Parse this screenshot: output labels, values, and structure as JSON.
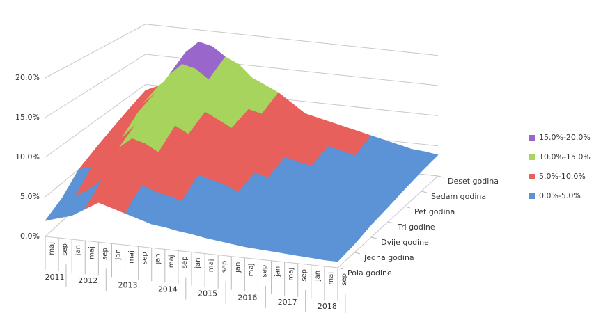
{
  "chart_data": {
    "type": "surface3d",
    "categories": [
      "maj",
      "sep",
      "jan",
      "maj",
      "sep",
      "jan",
      "maj",
      "sep",
      "jan",
      "maj",
      "sep",
      "jan",
      "maj",
      "sep",
      "jan",
      "maj",
      "sep",
      "jan",
      "maj",
      "sep",
      "jan",
      "maj",
      "sep"
    ],
    "category_years": [
      "2011",
      "2011",
      "2012",
      "2012",
      "2012",
      "2013",
      "2013",
      "2013",
      "2014",
      "2014",
      "2014",
      "2015",
      "2015",
      "2015",
      "2016",
      "2016",
      "2016",
      "2017",
      "2017",
      "2017",
      "2018",
      "2018",
      "2018"
    ],
    "series": [
      {
        "name": "Pola godine",
        "values": [
          2,
          2.5,
          3,
          4,
          5,
          4.5,
          4,
          3.5,
          3,
          2.8,
          2.5,
          2.3,
          2,
          1.8,
          1.6,
          1.4,
          1.3,
          1.2,
          1.1,
          1,
          0.9,
          0.8,
          0.8
        ]
      },
      {
        "name": "Jedna godina",
        "values": [
          3,
          3.5,
          4.5,
          6,
          7,
          6.5,
          5.8,
          5.2,
          4.8,
          4.3,
          3.8,
          3.5,
          3,
          2.7,
          2.4,
          2.1,
          1.9,
          1.7,
          1.5,
          1.4,
          1.3,
          1.2,
          1.1
        ]
      },
      {
        "name": "Dvije godine",
        "values": [
          5,
          5.5,
          7,
          8.5,
          10,
          9.5,
          8.5,
          7.5,
          7,
          6,
          5.5,
          5,
          4.2,
          3.8,
          3.4,
          3,
          2.8,
          2.5,
          2.3,
          2.1,
          1.9,
          1.8,
          1.7
        ]
      },
      {
        "name": "Tri godine",
        "values": [
          6,
          7,
          8,
          10,
          12,
          11.5,
          10.5,
          9.5,
          8.5,
          7.5,
          6.5,
          6,
          5,
          4.5,
          4,
          3.6,
          3.3,
          3,
          2.8,
          2.6,
          2.4,
          2.2,
          2.1
        ]
      },
      {
        "name": "Pet godina",
        "values": [
          7,
          8,
          10,
          12,
          14,
          13.5,
          12.5,
          11,
          10,
          9,
          8,
          7,
          6,
          5.5,
          5,
          4.6,
          4.2,
          3.8,
          3.5,
          3.2,
          3,
          2.8,
          2.6
        ]
      },
      {
        "name": "Sedam godina",
        "values": [
          8,
          9,
          11,
          14,
          16,
          15.5,
          14,
          13,
          11.5,
          10,
          9.5,
          8,
          7,
          6.5,
          6,
          5.5,
          5,
          4.5,
          4.2,
          3.8,
          3.5,
          3.3,
          3.1
        ]
      },
      {
        "name": "Deset godina",
        "values": [
          9,
          10,
          12,
          16,
          18,
          17.5,
          16,
          15,
          13,
          12,
          11,
          9.5,
          8,
          7.5,
          7,
          6.5,
          6,
          5.5,
          5,
          4.5,
          4,
          3.8,
          3.5
        ]
      }
    ],
    "bands": [
      {
        "name": "15.0%-20.0%",
        "min": 15,
        "max": 20,
        "color": "#9966cc"
      },
      {
        "name": "10.0%-15.0%",
        "min": 10,
        "max": 15,
        "color": "#a6d45c"
      },
      {
        "name": "5.0%-10.0%",
        "min": 5,
        "max": 10,
        "color": "#e8605c"
      },
      {
        "name": "0.0%-5.0%",
        "min": 0,
        "max": 5,
        "color": "#5b93d6"
      }
    ],
    "ylim": [
      0,
      20
    ],
    "yticks": [
      {
        "value": 0,
        "label": "0.0%"
      },
      {
        "value": 5,
        "label": "5.0%"
      },
      {
        "value": 10,
        "label": "10.0%"
      },
      {
        "value": 15,
        "label": "15.0%"
      },
      {
        "value": 20,
        "label": "20.0%"
      }
    ],
    "grid": true
  }
}
